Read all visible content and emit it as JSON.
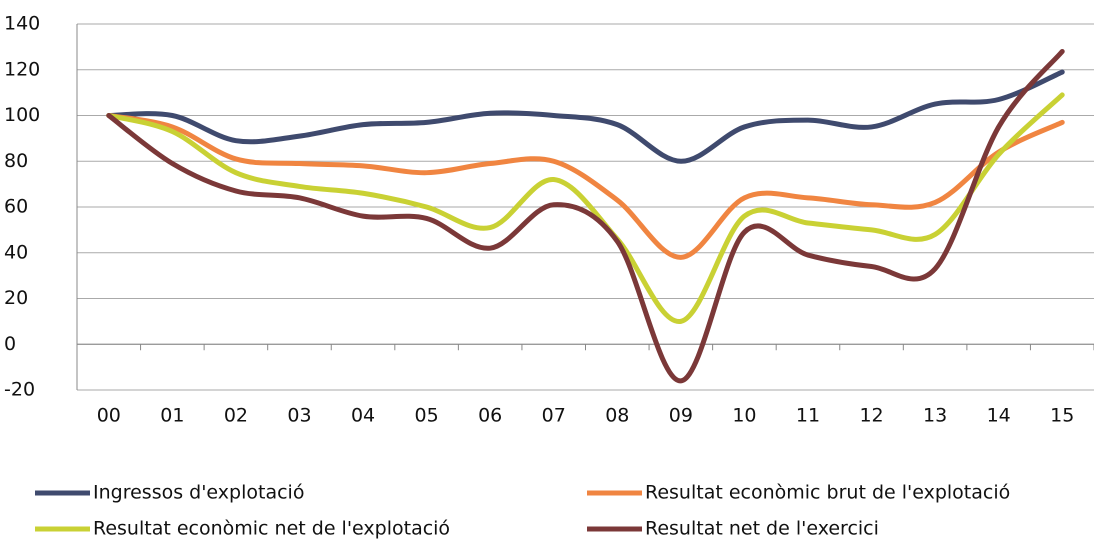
{
  "chart_data": {
    "type": "line",
    "categories": [
      "00",
      "01",
      "02",
      "03",
      "04",
      "05",
      "06",
      "07",
      "08",
      "09",
      "10",
      "11",
      "12",
      "13",
      "14",
      "15"
    ],
    "series": [
      {
        "name": "Ingressos d'explotació",
        "color": "#3f4a6e",
        "values": [
          100,
          100,
          89,
          91,
          96,
          97,
          101,
          100,
          96,
          80,
          95,
          98,
          95,
          105,
          107,
          119
        ]
      },
      {
        "name": "Resultat econòmic brut de l'explotació",
        "color": "#f08541",
        "values": [
          100,
          95,
          81,
          79,
          78,
          75,
          79,
          80,
          63,
          38,
          64,
          64,
          61,
          62,
          84,
          97
        ]
      },
      {
        "name": "Resultat econòmic net de l'explotació",
        "color": "#c9d134",
        "values": [
          100,
          93,
          75,
          69,
          66,
          60,
          51,
          72,
          46,
          10,
          56,
          53,
          50,
          48,
          83,
          109
        ]
      },
      {
        "name": "Resultat net de l'exercici",
        "color": "#7b3838",
        "values": [
          100,
          79,
          67,
          64,
          56,
          55,
          42,
          61,
          45,
          -16,
          49,
          39,
          34,
          33,
          95,
          128
        ]
      }
    ],
    "ylim": [
      -20,
      140
    ],
    "yticks": [
      -20,
      0,
      20,
      40,
      60,
      80,
      100,
      120,
      140
    ],
    "grid": true,
    "legend": "bottom"
  }
}
